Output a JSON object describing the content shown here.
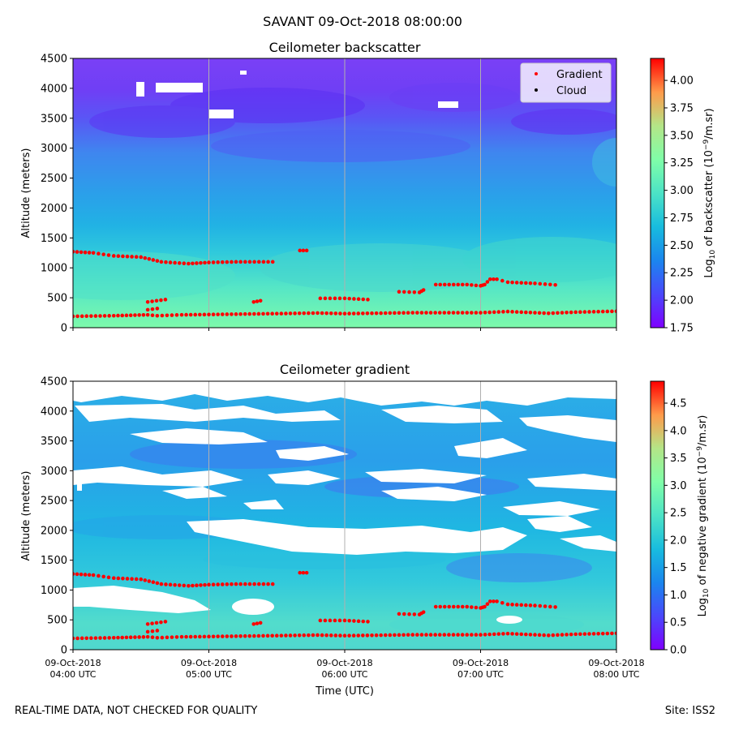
{
  "suptitle": "SAVANT 09-Oct-2018 08:00:00",
  "footer_left": "REAL-TIME DATA, NOT CHECKED FOR QUALITY",
  "footer_right": "Site: ISS2",
  "chart_data": [
    {
      "type": "heatmap",
      "title": "Ceilometer backscatter",
      "ylabel": "Altitude (meters)",
      "xlabel": "",
      "ylim": [
        0,
        4500
      ],
      "yticks": [
        0,
        500,
        1000,
        1500,
        2000,
        2500,
        3000,
        3500,
        4000,
        4500
      ],
      "xlim_hours": [
        4,
        8
      ],
      "xgrid_hours": [
        5,
        6,
        7
      ],
      "colorbar": {
        "label": "Log10 of backscatter (10^-9/m.sr)",
        "label_main": "Log",
        "label_sub": "10",
        "label_mid": " of backscatter (10",
        "label_sup": "−9",
        "label_end": "/m.sr)",
        "min": 1.75,
        "max": 4.2,
        "ticks": [
          "1.75",
          "2.00",
          "2.25",
          "2.50",
          "2.75",
          "3.00",
          "3.25",
          "3.50",
          "3.75",
          "4.00"
        ]
      },
      "legend": {
        "position": "top-right",
        "entries": [
          {
            "label": "Gradient",
            "color": "#ff0000"
          },
          {
            "label": "Cloud",
            "color": "#000000"
          }
        ]
      },
      "field_description": "log10 backscatter: ~2.7 near surface, decreasing to ~2.3 at 2000 m and ~2.0 above 3500 m; white gaps near 3500-4000 m",
      "gradient_series": [
        {
          "name": "surface layer",
          "points": [
            [
              4.0,
              190
            ],
            [
              4.3,
              200
            ],
            [
              4.55,
              215
            ],
            [
              4.62,
              200
            ],
            [
              4.8,
              215
            ],
            [
              5.0,
              220
            ],
            [
              5.5,
              235
            ],
            [
              5.8,
              245
            ],
            [
              6.0,
              235
            ],
            [
              6.5,
              250
            ],
            [
              7.0,
              250
            ],
            [
              7.2,
              270
            ],
            [
              7.5,
              240
            ],
            [
              7.7,
              260
            ],
            [
              8.0,
              275
            ]
          ]
        },
        {
          "name": "upper layer 1",
          "points": [
            [
              4.0,
              1270
            ],
            [
              4.15,
              1250
            ],
            [
              4.3,
              1200
            ],
            [
              4.5,
              1180
            ],
            [
              4.65,
              1100
            ],
            [
              4.85,
              1070
            ],
            [
              5.0,
              1090
            ],
            [
              5.2,
              1100
            ],
            [
              5.47,
              1100
            ]
          ]
        },
        {
          "name": "segment a",
          "points": [
            [
              4.55,
              430
            ],
            [
              4.68,
              470
            ]
          ]
        },
        {
          "name": "segment b",
          "points": [
            [
              4.55,
              300
            ],
            [
              4.62,
              320
            ]
          ]
        },
        {
          "name": "segment c",
          "points": [
            [
              5.33,
              430
            ],
            [
              5.38,
              450
            ]
          ]
        },
        {
          "name": "segment d",
          "points": [
            [
              5.67,
              1290
            ],
            [
              5.72,
              1290
            ]
          ]
        },
        {
          "name": "segment e",
          "points": [
            [
              5.82,
              490
            ],
            [
              6.0,
              490
            ],
            [
              6.17,
              470
            ]
          ]
        },
        {
          "name": "segment f",
          "points": [
            [
              6.4,
              600
            ],
            [
              6.55,
              590
            ],
            [
              6.58,
              630
            ]
          ]
        },
        {
          "name": "upper layer 2",
          "points": [
            [
              6.67,
              720
            ],
            [
              6.9,
              720
            ],
            [
              7.0,
              700
            ],
            [
              7.03,
              720
            ],
            [
              7.07,
              810
            ],
            [
              7.12,
              810
            ],
            [
              7.2,
              760
            ],
            [
              7.4,
              740
            ],
            [
              7.55,
              715
            ]
          ]
        }
      ]
    },
    {
      "type": "heatmap",
      "title": "Ceilometer gradient",
      "ylabel": "Altitude (meters)",
      "xlabel": "Time (UTC)",
      "ylim": [
        0,
        4500
      ],
      "yticks": [
        0,
        500,
        1000,
        1500,
        2000,
        2500,
        3000,
        3500,
        4000,
        4500
      ],
      "xticks": [
        {
          "hour": 4,
          "line1": "09-Oct-2018",
          "line2": "04:00 UTC"
        },
        {
          "hour": 5,
          "line1": "09-Oct-2018",
          "line2": "05:00 UTC"
        },
        {
          "hour": 6,
          "line1": "09-Oct-2018",
          "line2": "06:00 UTC"
        },
        {
          "hour": 7,
          "line1": "09-Oct-2018",
          "line2": "07:00 UTC"
        },
        {
          "hour": 8,
          "line1": "09-Oct-2018",
          "line2": "08:00 UTC"
        }
      ],
      "xlim_hours": [
        4,
        8
      ],
      "xgrid_hours": [
        5,
        6,
        7
      ],
      "colorbar": {
        "label": "Log10 of negative gradient (10^-9/m.sr)",
        "label_main": "Log",
        "label_sub": "10",
        "label_mid": " of negative gradient (10",
        "label_sup": "−9",
        "label_end": "/m.sr)",
        "min": 0.0,
        "max": 4.9,
        "ticks": [
          "0.0",
          "0.5",
          "1.0",
          "1.5",
          "2.0",
          "2.5",
          "3.0",
          "3.5",
          "4.0",
          "4.5"
        ]
      },
      "field_description": "log10 negative gradient mostly 1.0-2.0 with many white (no data) gaps at altitude"
    }
  ]
}
